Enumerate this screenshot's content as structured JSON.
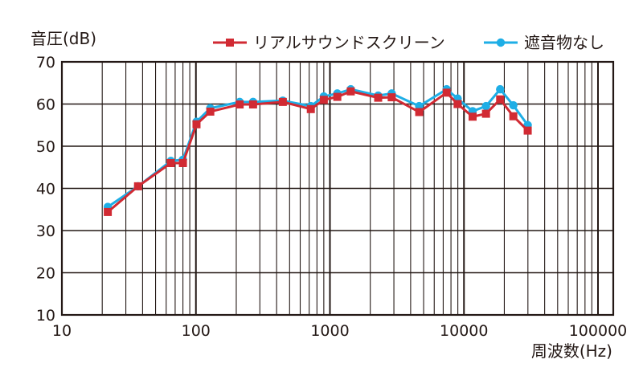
{
  "chart_data": {
    "type": "line",
    "ylabel": "音圧(dB)",
    "xlabel": "周波数(Hz)",
    "xscale": "log",
    "xlim": [
      10,
      130000
    ],
    "ylim": [
      10,
      70
    ],
    "grid": true,
    "legend_position": "top-right",
    "x_ticks": [
      {
        "value": 10,
        "label": "10"
      },
      {
        "value": 100,
        "label": "100"
      },
      {
        "value": 1000,
        "label": "1000"
      },
      {
        "value": 10000,
        "label": "10000"
      },
      {
        "value": 100000,
        "label": "100000"
      }
    ],
    "y_ticks": [
      {
        "value": 10,
        "label": "10"
      },
      {
        "value": 20,
        "label": "20"
      },
      {
        "value": 30,
        "label": "30"
      },
      {
        "value": 40,
        "label": "40"
      },
      {
        "value": 50,
        "label": "50"
      },
      {
        "value": 60,
        "label": "60"
      },
      {
        "value": 70,
        "label": "70"
      }
    ],
    "series": [
      {
        "name": "遮音物なし",
        "color": "#1eaee6",
        "marker": "circle",
        "x": [
          22,
          37,
          65,
          80,
          101,
          128,
          212,
          267,
          445,
          720,
          900,
          1135,
          1430,
          2290,
          2890,
          4635,
          7425,
          8970,
          11600,
          14600,
          18620,
          23350,
          29900
        ],
        "y": [
          35.6,
          40.5,
          46.5,
          46.8,
          55.8,
          59.0,
          60.5,
          60.5,
          60.8,
          59.5,
          61.8,
          62.5,
          63.5,
          62.0,
          62.5,
          59.5,
          63.5,
          61.3,
          58.3,
          59.5,
          63.5,
          59.7,
          55.0
        ]
      },
      {
        "name": "リアルサウンドスクリーン",
        "color": "#d12a33",
        "marker": "square",
        "x": [
          22,
          37,
          65,
          80,
          101,
          128,
          212,
          267,
          445,
          720,
          900,
          1135,
          1430,
          2290,
          2890,
          4635,
          7425,
          8970,
          11600,
          14600,
          18620,
          23350,
          29900
        ],
        "y": [
          34.4,
          40.5,
          46.0,
          46.0,
          55.2,
          58.2,
          59.9,
          59.9,
          60.5,
          58.8,
          61.0,
          61.7,
          63.0,
          61.5,
          61.6,
          58.1,
          62.7,
          60.0,
          57.0,
          57.7,
          61.1,
          57.1,
          53.7
        ]
      }
    ]
  },
  "legend_order": [
    1,
    0
  ]
}
